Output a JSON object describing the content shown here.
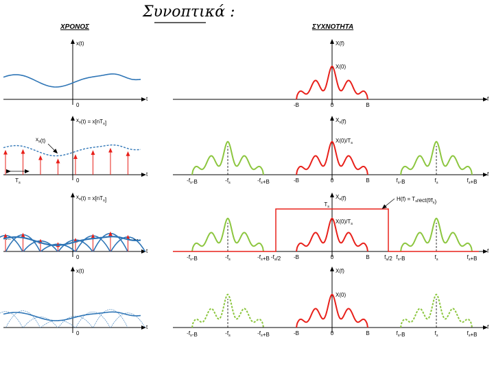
{
  "title": "Συνοπτικά :",
  "headers": {
    "time": "ΧΡΟΝΟΣ",
    "freq": "ΣΥΧΝΟΤΗΤΑ"
  },
  "colors": {
    "signal": "#2e75b6",
    "spectrum": "#e8201a",
    "replica": "#8cc63f",
    "impulse": "#e8201a",
    "axis": "#000000"
  },
  "rows": [
    {
      "time": {
        "ylabel": "x(t)",
        "tlabel": "t",
        "zero": "0"
      },
      "freq": {
        "ylabel": "X(f)",
        "flabel": "f",
        "peak": "X(0)",
        "ticks": [
          "-B",
          "0",
          "B"
        ]
      }
    },
    {
      "time": {
        "ylabel": "xs(t) = x[nTs]",
        "tlabel": "t",
        "zero": "0",
        "curve_label": "xs(t)",
        "period": "Ts"
      },
      "freq": {
        "ylabel": "Xs(f)",
        "flabel": "f",
        "peak": "X(0)/Ts",
        "ticks": [
          "-fs-B",
          "-fs",
          "-fs+B",
          "-B",
          "0",
          "B",
          "fs-B",
          "fs",
          "fs+B"
        ]
      }
    },
    {
      "time": {
        "ylabel": "xs(t) = x[nTs]",
        "tlabel": "t",
        "zero": "0",
        "dots_left": "...",
        "dots_right": "..."
      },
      "freq": {
        "ylabel": "Xs(f)",
        "flabel": "f",
        "peak": "X(0)/Ts",
        "filter_height": "Ts",
        "filter_label": "H(f) = Tsrect(f/fs)",
        "ticks": [
          "-fs-B",
          "-fs",
          "-fs+B",
          "-fs/2",
          "-B",
          "0",
          "B",
          "fs/2",
          "fs-B",
          "fs",
          "fs+B"
        ]
      }
    },
    {
      "time": {
        "ylabel": "x(t)",
        "tlabel": "t",
        "zero": "0"
      },
      "freq": {
        "ylabel": "X(f)",
        "flabel": "f",
        "peak": "X(0)",
        "ticks": [
          "-fs-B",
          "-fs",
          "-fs+B",
          "-B",
          "0",
          "B",
          "fs-B",
          "fs",
          "fs+B"
        ]
      }
    }
  ]
}
